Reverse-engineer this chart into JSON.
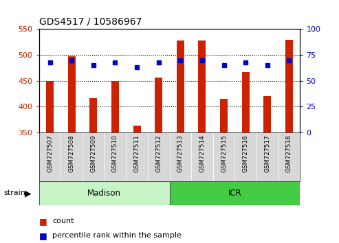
{
  "title": "GDS4517 / 10586967",
  "samples": [
    "GSM727507",
    "GSM727508",
    "GSM727509",
    "GSM727510",
    "GSM727511",
    "GSM727512",
    "GSM727513",
    "GSM727514",
    "GSM727515",
    "GSM727516",
    "GSM727517",
    "GSM727518"
  ],
  "counts": [
    450,
    498,
    416,
    450,
    363,
    456,
    528,
    528,
    415,
    467,
    420,
    530
  ],
  "percentiles": [
    68,
    70,
    65,
    68,
    63,
    68,
    70,
    70,
    65,
    68,
    65,
    70
  ],
  "madison_color_light": "#c8f5c8",
  "madison_color": "#66dd66",
  "icr_color": "#44cc44",
  "ylim_left": [
    350,
    550
  ],
  "ylim_right": [
    0,
    100
  ],
  "yticks_left": [
    350,
    400,
    450,
    500,
    550
  ],
  "yticks_right": [
    0,
    25,
    50,
    75,
    100
  ],
  "bar_color": "#CC2200",
  "marker_color": "#0000CC",
  "bar_bottom": 350,
  "background_color": "#ffffff",
  "sample_label_bg": "#d8d8d8",
  "legend_count_color": "#CC2200",
  "legend_pct_color": "#0000CC"
}
